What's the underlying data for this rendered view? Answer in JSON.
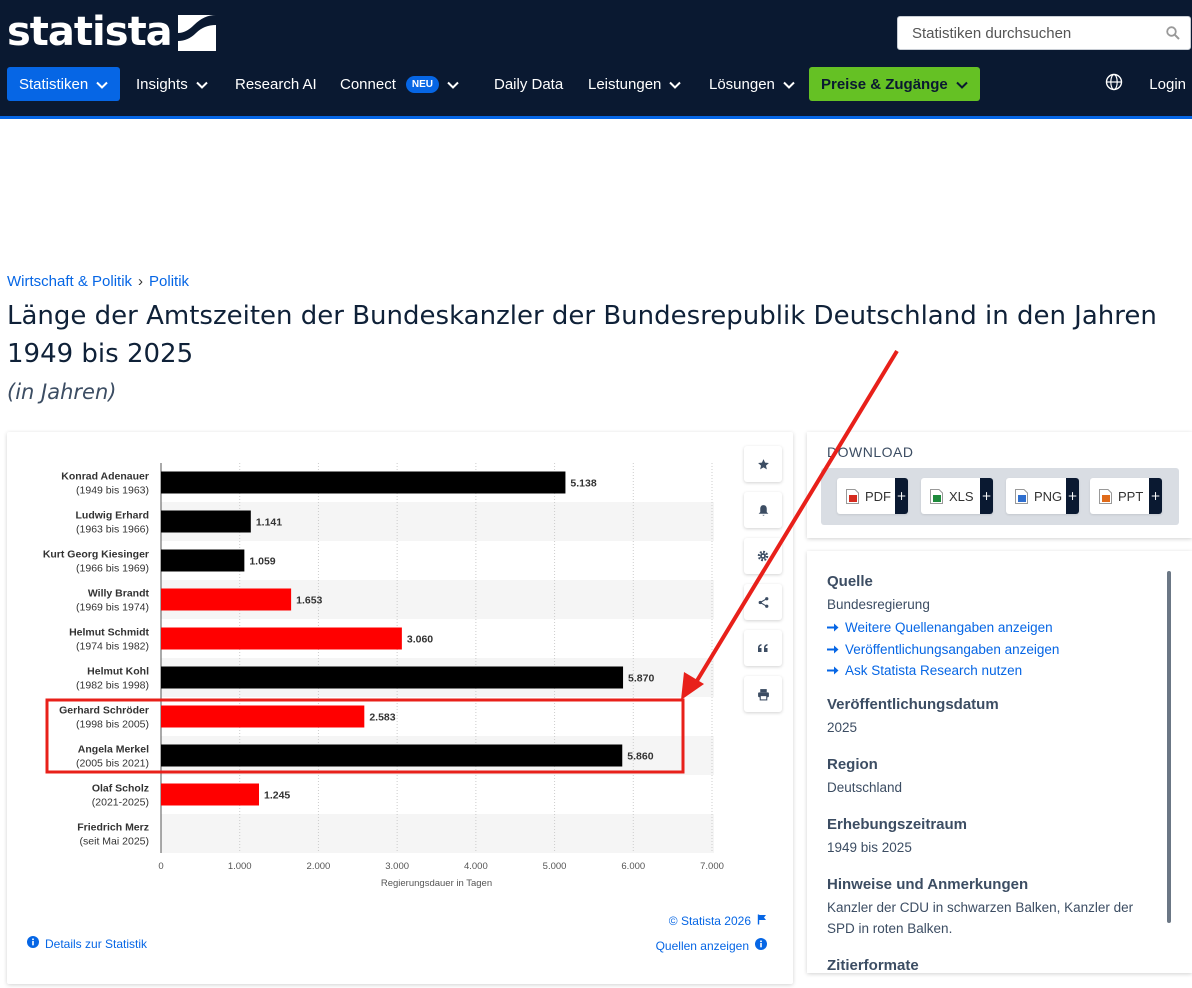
{
  "header": {
    "logo_text": "statista",
    "search_placeholder": "Statistiken durchsuchen",
    "nav": [
      {
        "label": "Statistiken",
        "has_chevron": true,
        "active": true
      },
      {
        "label": "Insights",
        "has_chevron": true
      },
      {
        "label": "Research AI",
        "has_chevron": false
      },
      {
        "label": "Connect",
        "badge": "NEU",
        "has_chevron": true
      },
      {
        "label": "Daily Data",
        "has_chevron": false
      },
      {
        "label": "Leistungen",
        "has_chevron": true
      },
      {
        "label": "Lösungen",
        "has_chevron": true
      },
      {
        "label": "Preise & Zugänge",
        "has_chevron": true,
        "highlight": true
      }
    ],
    "login_label": "Login"
  },
  "breadcrumb": {
    "item1": "Wirtschaft & Politik",
    "separator": "›",
    "item2": "Politik"
  },
  "page_title": "Länge der Amtszeiten der Bundeskanzler der Bundesrepublik Deutschland in den Jahren 1949 bis 2025",
  "page_subtitle": "(in Jahren)",
  "chart_data": {
    "type": "bar",
    "orientation": "horizontal",
    "categories": [
      {
        "name": "Konrad Adenauer",
        "period": "(1949 bis 1963)"
      },
      {
        "name": "Ludwig Erhard",
        "period": "(1963 bis 1966)"
      },
      {
        "name": "Kurt Georg Kiesinger",
        "period": "(1966 bis 1969)"
      },
      {
        "name": "Willy Brandt",
        "period": "(1969 bis 1974)"
      },
      {
        "name": "Helmut Schmidt",
        "period": "(1974 bis 1982)"
      },
      {
        "name": "Helmut Kohl",
        "period": "(1982 bis 1998)"
      },
      {
        "name": "Gerhard Schröder",
        "period": "(1998 bis 2005)"
      },
      {
        "name": "Angela Merkel",
        "period": "(2005 bis 2021)"
      },
      {
        "name": "Olaf Scholz",
        "period": "(2021-2025)"
      },
      {
        "name": "Friedrich Merz",
        "period": "(seit Mai 2025)"
      }
    ],
    "values": [
      5138,
      1141,
      1059,
      1653,
      3060,
      5870,
      2583,
      5860,
      1245,
      null
    ],
    "value_labels": [
      "5.138",
      "1.141",
      "1.059",
      "1.653",
      "3.060",
      "5.870",
      "2.583",
      "5.860",
      "1.245",
      ""
    ],
    "bar_colors": [
      "#000000",
      "#000000",
      "#000000",
      "#ff0000",
      "#ff0000",
      "#000000",
      "#ff0000",
      "#000000",
      "#ff0000",
      "#000000"
    ],
    "xlim": [
      0,
      7000
    ],
    "xticks": [
      0,
      1000,
      2000,
      3000,
      4000,
      5000,
      6000,
      7000
    ],
    "xtick_labels": [
      "0",
      "1.000",
      "2.000",
      "3.000",
      "4.000",
      "5.000",
      "6.000",
      "7.000"
    ],
    "xlabel": "Regierungsdauer in Tagen",
    "grid": "vertical dotted",
    "highlight_box_rows": [
      "Gerhard Schröder",
      "Angela Merkel"
    ]
  },
  "chart_tools": [
    "star-icon",
    "bell-icon",
    "gear-icon",
    "share-icon",
    "quote-icon",
    "print-icon"
  ],
  "chart_footer": {
    "copyright": "© Statista 2026",
    "details_link": "Details zur Statistik",
    "sources_link": "Quellen anzeigen"
  },
  "download": {
    "label": "DOWNLOAD",
    "formats": [
      "PDF",
      "XLS",
      "PNG",
      "PPT"
    ]
  },
  "info": {
    "source_heading": "Quelle",
    "source_value": "Bundesregierung",
    "links": [
      "Weitere Quellenangaben anzeigen",
      "Veröffentlichungsangaben anzeigen",
      "Ask Statista Research nutzen"
    ],
    "pubdate_heading": "Veröffentlichungsdatum",
    "pubdate_value": "2025",
    "region_heading": "Region",
    "region_value": "Deutschland",
    "period_heading": "Erhebungszeitraum",
    "period_value": "1949 bis 2025",
    "notes_heading": "Hinweise und Anmerkungen",
    "notes_value": "Kanzler der CDU in schwarzen Balken, Kanzler der SPD in roten Balken.",
    "citation_heading": "Zitierformate"
  },
  "colors": {
    "header_bg": "#0a1931",
    "accent_blue": "#0666e5",
    "accent_green": "#65c124",
    "annotation_red": "#e8201a"
  }
}
